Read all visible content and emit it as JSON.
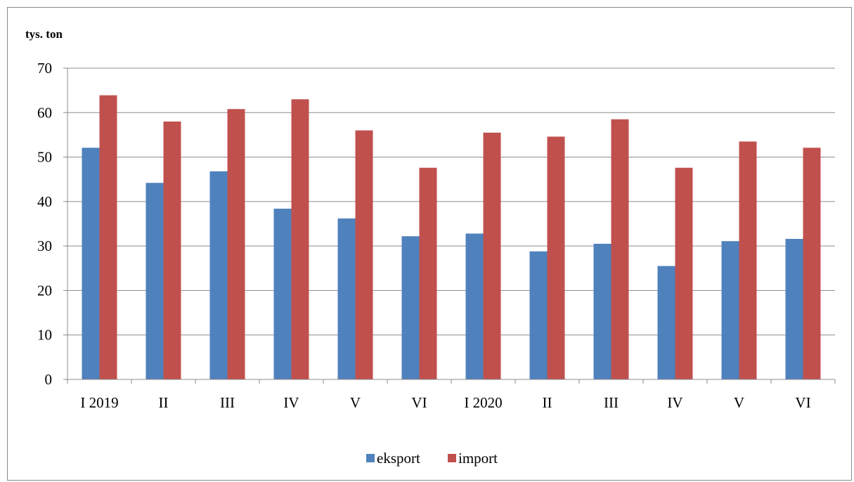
{
  "chart_data": {
    "type": "bar",
    "title": "",
    "xlabel": "",
    "ylabel": "tys. ton",
    "ylim": [
      0,
      70
    ],
    "yticks": [
      0,
      10,
      20,
      30,
      40,
      50,
      60,
      70
    ],
    "grid": true,
    "legend_position": "bottom",
    "categories": [
      "I 2019",
      "II",
      "III",
      "IV",
      "V",
      "VI",
      "I 2020",
      "II",
      "III",
      "IV",
      "V",
      "VI"
    ],
    "series": [
      {
        "name": "eksport",
        "color": "#4F81BD",
        "values": [
          52.1,
          44.2,
          46.8,
          38.4,
          36.2,
          32.2,
          32.8,
          28.8,
          30.5,
          25.5,
          31.1,
          31.6
        ]
      },
      {
        "name": "import",
        "color": "#C0504D",
        "values": [
          63.9,
          58.0,
          60.8,
          63.0,
          56.0,
          47.6,
          55.5,
          54.6,
          58.5,
          47.6,
          53.5,
          52.1
        ]
      }
    ]
  }
}
